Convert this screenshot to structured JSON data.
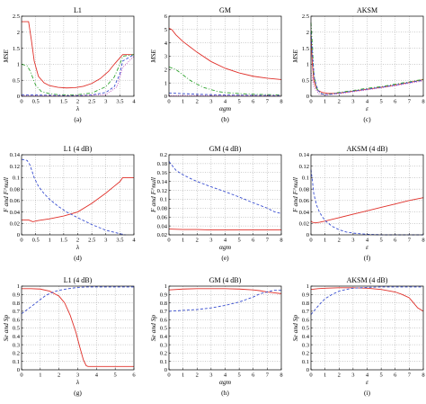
{
  "chart_data": [
    {
      "type": "line",
      "caption": "(a)",
      "title": "L1",
      "xlabel": "λ",
      "ylabel": "MSE",
      "xlim": [
        0,
        4
      ],
      "ylim": [
        0,
        2.5
      ],
      "xticks": [
        "0",
        "0.5",
        "1",
        "1.5",
        "2",
        "2.5",
        "3",
        "3.5",
        "4"
      ],
      "yticks": [
        "0",
        "0.5",
        "1",
        "1.5",
        "2",
        "2.5"
      ],
      "series": [
        {
          "color": "#e0302a",
          "dash": "",
          "x": [
            0,
            0.25,
            0.35,
            0.45,
            0.6,
            0.8,
            1,
            1.3,
            1.6,
            1.9,
            2.2,
            2.5,
            2.8,
            3.1,
            3.3,
            3.45,
            3.6,
            4
          ],
          "y": [
            2.33,
            2.33,
            1.75,
            1.1,
            0.62,
            0.42,
            0.33,
            0.28,
            0.26,
            0.27,
            0.31,
            0.4,
            0.55,
            0.78,
            1.0,
            1.15,
            1.3,
            1.3
          ]
        },
        {
          "color": "#2fa32f",
          "dash": "4 2 1 2",
          "x": [
            0,
            0.2,
            0.3,
            0.5,
            0.7,
            1,
            1.3,
            1.7,
            2,
            2.5,
            3,
            3.3,
            3.5,
            3.6,
            4
          ],
          "y": [
            1.0,
            0.95,
            0.8,
            0.35,
            0.15,
            0.08,
            0.05,
            0.04,
            0.05,
            0.1,
            0.3,
            0.6,
            1.0,
            1.25,
            1.3
          ]
        },
        {
          "color": "#3a4fd0",
          "dash": "3 2",
          "x": [
            0,
            0.5,
            1,
            1.5,
            2,
            2.5,
            3,
            3.3,
            3.5,
            3.6,
            4
          ],
          "y": [
            0.05,
            0.04,
            0.03,
            0.02,
            0.02,
            0.04,
            0.12,
            0.3,
            0.7,
            1.1,
            1.3
          ]
        },
        {
          "color": "#c050c0",
          "dash": "1 1.5",
          "x": [
            0,
            1,
            2,
            3,
            3.4,
            3.6,
            4
          ],
          "y": [
            0.02,
            0.02,
            0.02,
            0.05,
            0.3,
            0.9,
            1.25
          ]
        }
      ]
    },
    {
      "type": "line",
      "caption": "(b)",
      "title": "GM",
      "xlabel": "αgm",
      "ylabel": "MSE",
      "xlim": [
        0,
        8
      ],
      "ylim": [
        0,
        6
      ],
      "xticks": [
        "0",
        "1",
        "2",
        "3",
        "4",
        "5",
        "6",
        "7",
        "8"
      ],
      "yticks": [
        "0",
        "1",
        "2",
        "3",
        "4",
        "5",
        "6"
      ],
      "series": [
        {
          "color": "#e0302a",
          "dash": "",
          "x": [
            0,
            0.2,
            0.5,
            1,
            1.5,
            2,
            3,
            4,
            5,
            6,
            7,
            8
          ],
          "y": [
            5.1,
            5.0,
            4.6,
            4.1,
            3.7,
            3.3,
            2.6,
            2.1,
            1.75,
            1.5,
            1.35,
            1.25
          ]
        },
        {
          "color": "#2fa32f",
          "dash": "4 2 1 2",
          "x": [
            0,
            0.5,
            1,
            1.5,
            2,
            2.5,
            3,
            3.5,
            4,
            5,
            6,
            8
          ],
          "y": [
            2.2,
            2.0,
            1.6,
            1.2,
            0.9,
            0.65,
            0.5,
            0.35,
            0.28,
            0.2,
            0.15,
            0.1
          ]
        },
        {
          "color": "#3a4fd0",
          "dash": "3 2",
          "x": [
            0,
            1,
            2,
            3,
            4,
            5,
            6,
            7,
            8
          ],
          "y": [
            0.25,
            0.2,
            0.15,
            0.12,
            0.1,
            0.08,
            0.07,
            0.06,
            0.05
          ]
        },
        {
          "color": "#c050c0",
          "dash": "1 1.5",
          "x": [
            0,
            8
          ],
          "y": [
            0.05,
            0.05
          ]
        }
      ]
    },
    {
      "type": "line",
      "caption": "(c)",
      "title": "AKSM",
      "xlabel": "ε",
      "ylabel": "MSE",
      "xlim": [
        0,
        8
      ],
      "ylim": [
        0,
        2.5
      ],
      "xticks": [
        "0",
        "1",
        "2",
        "3",
        "4",
        "5",
        "6",
        "7",
        "8"
      ],
      "yticks": [
        "0",
        "0.5",
        "1",
        "1.5",
        "2",
        "2.5"
      ],
      "series": [
        {
          "color": "#e0302a",
          "dash": "",
          "x": [
            0,
            0.1,
            0.2,
            0.35,
            0.5,
            0.8,
            1.2,
            1.6,
            2,
            3,
            4,
            5,
            6,
            7,
            8
          ],
          "y": [
            1.9,
            1.0,
            0.5,
            0.28,
            0.18,
            0.12,
            0.09,
            0.09,
            0.1,
            0.16,
            0.22,
            0.28,
            0.35,
            0.43,
            0.52
          ]
        },
        {
          "color": "#2fa32f",
          "dash": "4 2 1 2",
          "x": [
            0,
            0.1,
            0.2,
            0.4,
            0.7,
            1,
            1.5,
            2,
            3,
            4,
            5,
            6,
            7,
            8
          ],
          "y": [
            2.3,
            1.6,
            0.7,
            0.25,
            0.08,
            0.05,
            0.08,
            0.12,
            0.18,
            0.25,
            0.3,
            0.38,
            0.45,
            0.53
          ]
        },
        {
          "color": "#3a4fd0",
          "dash": "3 2",
          "x": [
            0,
            0.1,
            0.25,
            0.5,
            0.8,
            1.2,
            2,
            3,
            4,
            5,
            6,
            7,
            8
          ],
          "y": [
            2.0,
            1.3,
            0.55,
            0.18,
            0.07,
            0.05,
            0.1,
            0.16,
            0.22,
            0.28,
            0.35,
            0.43,
            0.5
          ]
        },
        {
          "color": "#c050c0",
          "dash": "1 1.5",
          "x": [
            0,
            0.2,
            0.6,
            1,
            2,
            4,
            6,
            8
          ],
          "y": [
            0.8,
            0.3,
            0.06,
            0.04,
            0.08,
            0.2,
            0.33,
            0.48
          ]
        }
      ]
    },
    {
      "type": "line",
      "caption": "(d)",
      "title": "L1 (4 dB)",
      "xlabel": "λ",
      "ylabel": "F and F^null",
      "xlim": [
        0,
        4
      ],
      "ylim": [
        0,
        0.14
      ],
      "xticks": [
        "0",
        "0.5",
        "1",
        "1.5",
        "2",
        "2.5",
        "3",
        "3.5",
        "4"
      ],
      "yticks": [
        "0",
        "0.02",
        "0.04",
        "0.06",
        "0.08",
        "0.1",
        "0.12",
        "0.14"
      ],
      "series": [
        {
          "color": "#e0302a",
          "dash": "",
          "x": [
            0,
            0.25,
            0.4,
            0.6,
            1,
            1.5,
            2,
            2.5,
            3,
            3.3,
            3.5,
            3.6,
            4
          ],
          "y": [
            0.026,
            0.026,
            0.023,
            0.025,
            0.028,
            0.033,
            0.04,
            0.055,
            0.073,
            0.085,
            0.093,
            0.1,
            0.1
          ]
        },
        {
          "color": "#3a4fd0",
          "dash": "3 2",
          "x": [
            0,
            0.2,
            0.3,
            0.45,
            0.6,
            0.8,
            1,
            1.3,
            1.6,
            2,
            2.5,
            3,
            3.5,
            3.7
          ],
          "y": [
            0.132,
            0.13,
            0.122,
            0.1,
            0.085,
            0.072,
            0.062,
            0.05,
            0.04,
            0.03,
            0.018,
            0.008,
            0.002,
            0
          ]
        }
      ]
    },
    {
      "type": "line",
      "caption": "(e)",
      "title": "GM (4 dB)",
      "xlabel": "αgm",
      "ylabel": "F and F^null",
      "xlim": [
        0,
        8
      ],
      "ylim": [
        0.02,
        0.2
      ],
      "xticks": [
        "0",
        "1",
        "2",
        "3",
        "4",
        "5",
        "6",
        "7",
        "8"
      ],
      "yticks": [
        "0.02",
        "0.04",
        "0.06",
        "0.08",
        "0.1",
        "0.12",
        "0.14",
        "0.16",
        "0.18",
        "0.2"
      ],
      "series": [
        {
          "color": "#e0302a",
          "dash": "",
          "x": [
            0,
            1,
            2,
            3,
            4,
            5,
            6,
            7,
            8
          ],
          "y": [
            0.033,
            0.032,
            0.032,
            0.031,
            0.031,
            0.031,
            0.031,
            0.031,
            0.031
          ]
        },
        {
          "color": "#3a4fd0",
          "dash": "3 2",
          "x": [
            0,
            0.5,
            1,
            1.5,
            2,
            3,
            4,
            5,
            6,
            7,
            7.5,
            8
          ],
          "y": [
            0.185,
            0.165,
            0.155,
            0.147,
            0.14,
            0.128,
            0.117,
            0.105,
            0.092,
            0.08,
            0.072,
            0.068
          ]
        }
      ]
    },
    {
      "type": "line",
      "caption": "(f)",
      "title": "AKSM (4 dB)",
      "xlabel": "ε",
      "ylabel": "F and F^null",
      "xlim": [
        0,
        8
      ],
      "ylim": [
        0,
        0.14
      ],
      "xticks": [
        "0",
        "1",
        "2",
        "3",
        "4",
        "5",
        "6",
        "7",
        "8"
      ],
      "yticks": [
        "0",
        "0.02",
        "0.04",
        "0.06",
        "0.08",
        "0.1",
        "0.12",
        "0.14"
      ],
      "series": [
        {
          "color": "#e0302a",
          "dash": "",
          "x": [
            0,
            0.1,
            0.3,
            0.6,
            1,
            2,
            3,
            4,
            5,
            6,
            7,
            8
          ],
          "y": [
            0.024,
            0.022,
            0.021,
            0.022,
            0.024,
            0.03,
            0.036,
            0.042,
            0.048,
            0.054,
            0.06,
            0.065
          ]
        },
        {
          "color": "#3a4fd0",
          "dash": "3 2",
          "x": [
            0,
            0.1,
            0.2,
            0.4,
            0.6,
            0.8,
            1,
            1.5,
            2,
            2.5,
            3,
            4,
            5,
            6,
            7,
            8
          ],
          "y": [
            0.114,
            0.095,
            0.072,
            0.052,
            0.04,
            0.032,
            0.025,
            0.015,
            0.009,
            0.005,
            0.003,
            0.001,
            0,
            0,
            0,
            0
          ]
        }
      ]
    },
    {
      "type": "line",
      "caption": "(g)",
      "title": "L1 (4 dB)",
      "xlabel": "λ",
      "ylabel": "Se and Sp",
      "xlim": [
        0,
        6
      ],
      "ylim": [
        0,
        1
      ],
      "xticks": [
        "0",
        "1",
        "2",
        "3",
        "4",
        "5",
        "6"
      ],
      "yticks": [
        "0",
        "0.1",
        "0.2",
        "0.3",
        "0.4",
        "0.5",
        "0.6",
        "0.7",
        "0.8",
        "0.9",
        "1"
      ],
      "series": [
        {
          "color": "#e0302a",
          "dash": "",
          "x": [
            0,
            0.5,
            1,
            1.5,
            2,
            2.3,
            2.6,
            2.9,
            3.1,
            3.3,
            3.45,
            3.55,
            6
          ],
          "y": [
            0.97,
            0.97,
            0.965,
            0.94,
            0.88,
            0.8,
            0.65,
            0.45,
            0.28,
            0.12,
            0.05,
            0.04,
            0.04
          ]
        },
        {
          "color": "#3a4fd0",
          "dash": "3 2",
          "x": [
            0,
            0.3,
            0.6,
            1,
            1.3,
            1.7,
            2,
            2.5,
            3,
            3.5,
            4,
            5,
            6
          ],
          "y": [
            0.67,
            0.72,
            0.77,
            0.84,
            0.89,
            0.93,
            0.95,
            0.97,
            0.985,
            0.99,
            0.99,
            0.99,
            0.99
          ]
        }
      ]
    },
    {
      "type": "line",
      "caption": "(h)",
      "title": "GM (4 dB)",
      "xlabel": "αgm",
      "ylabel": "Se and Sp",
      "xlim": [
        0,
        8
      ],
      "ylim": [
        0,
        1
      ],
      "xticks": [
        "0",
        "1",
        "2",
        "3",
        "4",
        "5",
        "6",
        "7",
        "8"
      ],
      "yticks": [
        "0",
        "0.1",
        "0.2",
        "0.3",
        "0.4",
        "0.5",
        "0.6",
        "0.7",
        "0.8",
        "0.9",
        "1"
      ],
      "series": [
        {
          "color": "#e0302a",
          "dash": "",
          "x": [
            0,
            1,
            2,
            3,
            4,
            5,
            6,
            6.5,
            7,
            7.5,
            8
          ],
          "y": [
            0.955,
            0.965,
            0.97,
            0.97,
            0.97,
            0.965,
            0.955,
            0.945,
            0.93,
            0.92,
            0.91
          ]
        },
        {
          "color": "#3a4fd0",
          "dash": "3 2",
          "x": [
            0,
            1,
            2,
            3,
            4,
            5,
            5.5,
            6,
            6.5,
            7,
            7.5,
            8
          ],
          "y": [
            0.7,
            0.71,
            0.72,
            0.74,
            0.77,
            0.81,
            0.84,
            0.87,
            0.91,
            0.93,
            0.95,
            0.95
          ]
        }
      ]
    },
    {
      "type": "line",
      "caption": "(i)",
      "title": "AKSM (4 dB)",
      "xlabel": "ε",
      "ylabel": "Se and Sp",
      "xlim": [
        0,
        8
      ],
      "ylim": [
        0,
        1
      ],
      "xticks": [
        "0",
        "1",
        "2",
        "3",
        "4",
        "5",
        "6",
        "7",
        "8"
      ],
      "yticks": [
        "0",
        "0.1",
        "0.2",
        "0.3",
        "0.4",
        "0.5",
        "0.6",
        "0.7",
        "0.8",
        "0.9",
        "1"
      ],
      "series": [
        {
          "color": "#e0302a",
          "dash": "",
          "x": [
            0,
            0.5,
            1,
            2,
            3,
            4,
            5,
            6,
            6.5,
            7,
            7.3,
            7.6,
            8
          ],
          "y": [
            0.96,
            0.97,
            0.975,
            0.98,
            0.98,
            0.975,
            0.96,
            0.93,
            0.9,
            0.86,
            0.8,
            0.74,
            0.7
          ]
        },
        {
          "color": "#3a4fd0",
          "dash": "3 2",
          "x": [
            0,
            0.3,
            0.6,
            1,
            1.5,
            2,
            2.5,
            3,
            4,
            5,
            6,
            7,
            8
          ],
          "y": [
            0.66,
            0.72,
            0.78,
            0.85,
            0.9,
            0.94,
            0.96,
            0.975,
            0.985,
            0.99,
            0.99,
            0.99,
            0.99
          ]
        }
      ]
    }
  ]
}
